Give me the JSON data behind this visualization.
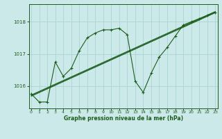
{
  "bg_color": "#cce9e9",
  "grid_color": "#aad4d4",
  "line_color": "#1a5c1a",
  "title": "Graphe pression niveau de la mer (hPa)",
  "xlabel_ticks": [
    0,
    1,
    2,
    3,
    4,
    5,
    6,
    7,
    8,
    9,
    10,
    11,
    12,
    13,
    14,
    15,
    16,
    17,
    18,
    19,
    20,
    21,
    22,
    23
  ],
  "yticks": [
    1016,
    1017,
    1018
  ],
  "ylim": [
    1015.3,
    1018.55
  ],
  "xlim": [
    -0.3,
    23.3
  ],
  "series1": {
    "x": [
      0,
      1,
      2,
      3,
      4,
      5,
      6,
      7,
      8,
      9,
      10,
      11,
      12,
      13,
      14,
      15,
      16,
      17,
      18,
      19,
      20,
      21,
      22,
      23
    ],
    "y": [
      1015.75,
      1015.5,
      1015.5,
      1016.75,
      1016.3,
      1016.55,
      1017.1,
      1017.5,
      1017.65,
      1017.75,
      1017.75,
      1017.8,
      1017.6,
      1016.15,
      1015.8,
      1016.4,
      1016.9,
      1017.2,
      1017.55,
      1017.9,
      1018.0,
      1018.1,
      1018.2,
      1018.3
    ]
  },
  "series2": {
    "x": [
      0,
      23
    ],
    "y": [
      1015.7,
      1018.3
    ]
  },
  "series3": {
    "x": [
      0,
      23
    ],
    "y": [
      1015.72,
      1018.32
    ]
  },
  "series4": {
    "x": [
      0,
      23
    ],
    "y": [
      1015.68,
      1018.28
    ]
  }
}
